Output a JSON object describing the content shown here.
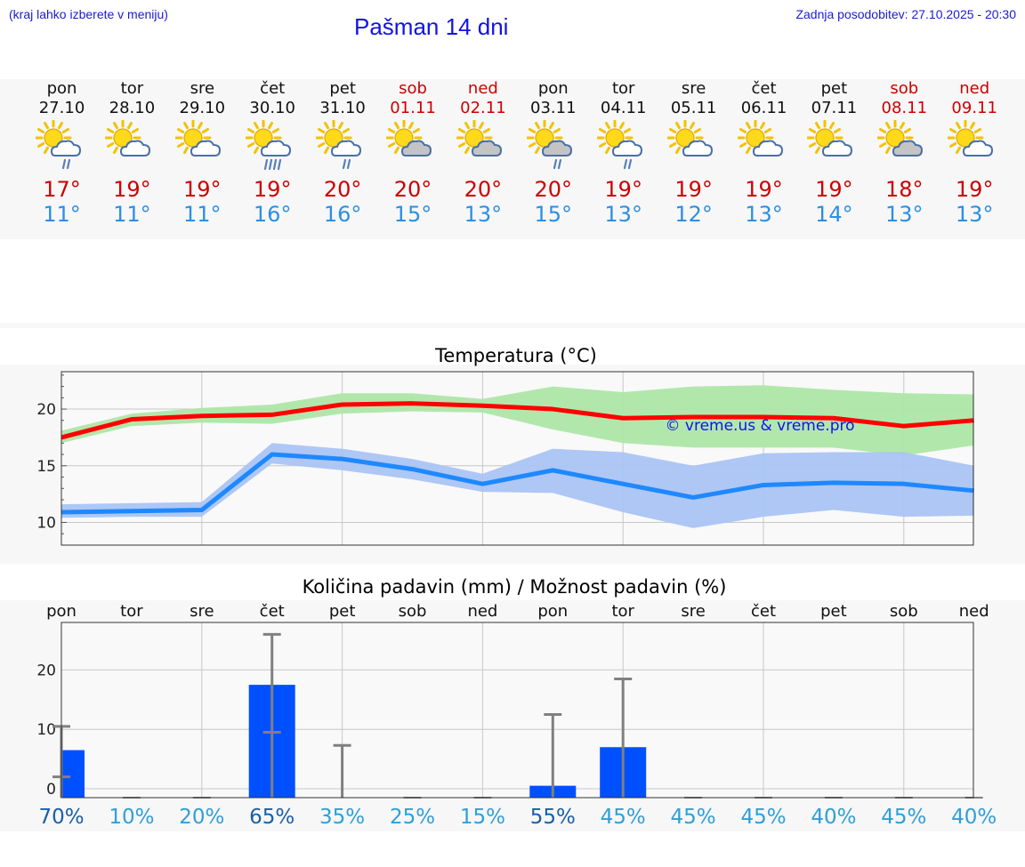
{
  "header": {
    "menu_hint": "(kraj lahko izberete v meniju)",
    "title": "Pašman 14 dni",
    "updated": "Zadnja posodobitev: 27.10.2025 - 20:30"
  },
  "colors": {
    "max": "#cc0000",
    "min": "#2a8fe6",
    "max_line": "#ff0000",
    "max_band": "#aee6a8",
    "min_line": "#1e88ff",
    "min_band": "#aac4f4",
    "bar": "#0050ff",
    "err": "#808080",
    "pct_dark": "#1a5fa8",
    "pct_light": "#2f9fd8"
  },
  "days": [
    {
      "name": "pon",
      "date": "27.10",
      "icon": "sun-cloud-rain-icon",
      "max": "17°",
      "min": "11°",
      "weekend": false
    },
    {
      "name": "tor",
      "date": "28.10",
      "icon": "sun-cloud-icon",
      "max": "19°",
      "min": "11°",
      "weekend": false
    },
    {
      "name": "sre",
      "date": "29.10",
      "icon": "sun-cloud-icon",
      "max": "19°",
      "min": "11°",
      "weekend": false
    },
    {
      "name": "čet",
      "date": "30.10",
      "icon": "sun-cloud-heavy-rain-icon",
      "max": "19°",
      "min": "16°",
      "weekend": false
    },
    {
      "name": "pet",
      "date": "31.10",
      "icon": "sun-cloud-rain-icon",
      "max": "20°",
      "min": "16°",
      "weekend": false
    },
    {
      "name": "sob",
      "date": "01.11",
      "icon": "sun-cloud-grey-icon",
      "max": "20°",
      "min": "15°",
      "weekend": true
    },
    {
      "name": "ned",
      "date": "02.11",
      "icon": "sun-cloud-grey-icon",
      "max": "20°",
      "min": "13°",
      "weekend": true
    },
    {
      "name": "pon",
      "date": "03.11",
      "icon": "sun-cloud-grey-rain-icon",
      "max": "20°",
      "min": "15°",
      "weekend": false
    },
    {
      "name": "tor",
      "date": "04.11",
      "icon": "sun-cloud-rain-icon",
      "max": "19°",
      "min": "13°",
      "weekend": false
    },
    {
      "name": "sre",
      "date": "05.11",
      "icon": "sun-cloud-icon",
      "max": "19°",
      "min": "12°",
      "weekend": false
    },
    {
      "name": "čet",
      "date": "06.11",
      "icon": "sun-cloud-icon",
      "max": "19°",
      "min": "13°",
      "weekend": false
    },
    {
      "name": "pet",
      "date": "07.11",
      "icon": "sun-cloud-icon",
      "max": "19°",
      "min": "14°",
      "weekend": false
    },
    {
      "name": "sob",
      "date": "08.11",
      "icon": "sun-cloud-grey-icon",
      "max": "18°",
      "min": "13°",
      "weekend": true
    },
    {
      "name": "ned",
      "date": "09.11",
      "icon": "sun-cloud-icon",
      "max": "19°",
      "min": "13°",
      "weekend": true
    }
  ],
  "chart_data": [
    {
      "type": "line",
      "title": "Temperatura (°C)",
      "watermark": "© vreme.us & vreme.pro",
      "x": [
        0,
        1,
        2,
        3,
        4,
        5,
        6,
        7,
        8,
        9,
        10,
        11,
        12,
        13
      ],
      "yticks": [
        10,
        15,
        20
      ],
      "ylim": [
        8,
        23.3
      ],
      "grid": true,
      "series": [
        {
          "name": "max",
          "values": [
            17.5,
            19.1,
            19.4,
            19.5,
            20.4,
            20.5,
            20.3,
            20.0,
            19.2,
            19.3,
            19.3,
            19.2,
            18.5,
            19.0
          ],
          "band_low": [
            17.0,
            18.5,
            18.8,
            18.7,
            19.6,
            19.8,
            19.7,
            18.2,
            17.0,
            16.6,
            16.6,
            16.6,
            15.9,
            16.8
          ],
          "band_high": [
            18.1,
            19.6,
            20.1,
            20.4,
            21.4,
            21.4,
            20.9,
            22.0,
            21.5,
            22.0,
            22.1,
            21.7,
            21.4,
            21.3
          ]
        },
        {
          "name": "min",
          "values": [
            10.9,
            11.0,
            11.1,
            16.0,
            15.6,
            14.7,
            13.4,
            14.6,
            13.4,
            12.2,
            13.3,
            13.5,
            13.4,
            12.8
          ],
          "band_low": [
            10.4,
            10.5,
            10.5,
            15.2,
            14.6,
            13.8,
            12.7,
            12.6,
            10.9,
            9.5,
            10.5,
            11.1,
            10.5,
            10.6
          ],
          "band_high": [
            11.6,
            11.7,
            11.8,
            17.0,
            16.5,
            15.6,
            14.3,
            16.5,
            16.2,
            15.0,
            16.1,
            16.2,
            16.2,
            15.0
          ]
        }
      ]
    },
    {
      "type": "bar",
      "title": "Količina padavin (mm) / Možnost padavin (%)",
      "categories": [
        "pon",
        "tor",
        "sre",
        "čet",
        "pet",
        "sob",
        "ned",
        "pon",
        "tor",
        "sre",
        "čet",
        "pet",
        "sob",
        "ned"
      ],
      "values": [
        6.5,
        0,
        0,
        17.5,
        0,
        0,
        0,
        0.5,
        7,
        0,
        0,
        0,
        0,
        0
      ],
      "err_low": [
        2,
        0,
        0,
        9.5,
        0,
        0,
        0,
        0,
        0,
        0,
        0,
        0,
        0,
        0
      ],
      "err_high": [
        10.5,
        0,
        0,
        26,
        7.3,
        0,
        0,
        12.5,
        18.5,
        0,
        0,
        0,
        0,
        0
      ],
      "probability": [
        "70%",
        "10%",
        "20%",
        "65%",
        "35%",
        "25%",
        "15%",
        "55%",
        "45%",
        "45%",
        "45%",
        "40%",
        "45%",
        "40%"
      ],
      "prob_strong": [
        true,
        false,
        false,
        true,
        false,
        false,
        false,
        true,
        false,
        false,
        false,
        false,
        false,
        false
      ],
      "yticks": [
        0,
        10,
        20
      ],
      "ylim": [
        -1.5,
        28
      ],
      "grid": true
    }
  ]
}
